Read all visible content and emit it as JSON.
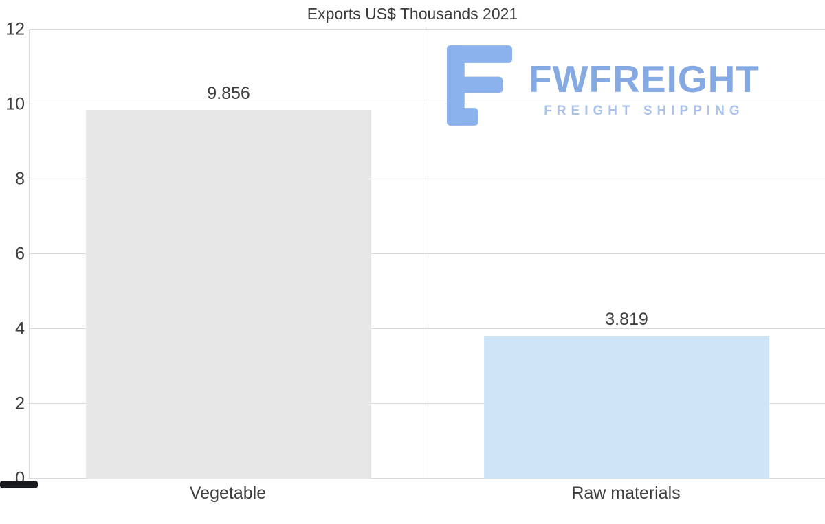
{
  "chart_data": {
    "type": "bar",
    "title": "Exports US$ Thousands 2021",
    "categories": [
      "Vegetable",
      "Raw materials"
    ],
    "values": [
      9.856,
      3.819
    ],
    "value_labels": [
      "9.856",
      "3.819"
    ],
    "bar_colors": [
      "#e6e6e6",
      "#cee5f8"
    ],
    "xlabel": "",
    "ylabel": "",
    "ylim": [
      0,
      12
    ],
    "yticks": [
      0,
      2,
      4,
      6,
      8,
      10,
      12
    ],
    "grid": true,
    "legend": "none",
    "gridline_color": "#d8d8d8",
    "background": "#ffffff"
  },
  "logo": {
    "brand": "FWFREIGHT",
    "tagline": "FREIGHT SHIPPING",
    "icon": "fw-letter-f-icon",
    "icon_color": "#8cb2ed",
    "brand_color": "#85a9e2",
    "tagline_color": "#a9c2ec"
  }
}
